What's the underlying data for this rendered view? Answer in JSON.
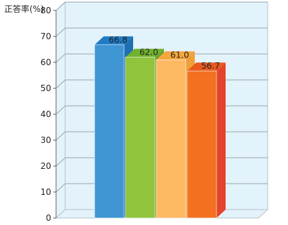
{
  "chart_data": {
    "type": "bar",
    "ylabel": "正答率(%)",
    "ylim": [
      0,
      80
    ],
    "yticks": [
      0,
      10,
      20,
      30,
      40,
      50,
      60,
      70,
      80
    ],
    "grid": true,
    "style": "3d",
    "bars": [
      {
        "value": 66.8,
        "label": "66.8",
        "color": "#3f95d3",
        "top_color": "#1f7cc5",
        "side_color": "#1f6fb4"
      },
      {
        "value": 62.0,
        "label": "62.0",
        "color": "#8fc43c",
        "top_color": "#6fb22d",
        "side_color": "#6ba32a"
      },
      {
        "value": 61.0,
        "label": "61.0",
        "color": "#fdb862",
        "top_color": "#f5a63c",
        "side_color": "#f0a036"
      },
      {
        "value": 56.7,
        "label": "56.7",
        "color": "#f37021",
        "top_color": "#e95a1f",
        "side_color": "#e4442b"
      }
    ],
    "colors": {
      "wall": "#e3f3fb",
      "wall_border": "#b9c2c8",
      "grid": "#9aa4ab",
      "floor": "#e3f3fb"
    }
  }
}
